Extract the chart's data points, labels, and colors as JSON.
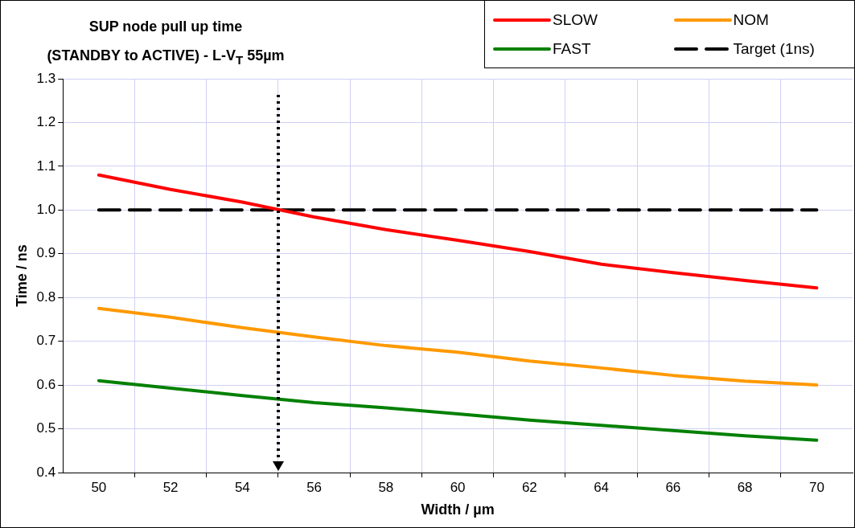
{
  "chart_data": {
    "type": "line",
    "title": "SUP node pull up time\n(STANDBY to ACTIVE) - L-V$_{T}$ 55µm",
    "xlabel": "Width / µm",
    "ylabel": "Time / ns",
    "x": [
      50,
      52,
      54,
      56,
      58,
      60,
      62,
      64,
      66,
      68,
      70
    ],
    "series": [
      {
        "name": "SLOW",
        "color": "#ff0000",
        "values": [
          1.08,
          1.047,
          1.018,
          0.984,
          0.955,
          0.931,
          0.905,
          0.876,
          0.857,
          0.839,
          0.822
        ]
      },
      {
        "name": "NOM",
        "color": "#ff9900",
        "values": [
          0.775,
          0.755,
          0.731,
          0.71,
          0.69,
          0.675,
          0.655,
          0.639,
          0.622,
          0.609,
          0.6
        ]
      },
      {
        "name": "FAST",
        "color": "#008000",
        "values": [
          0.61,
          0.593,
          0.576,
          0.56,
          0.548,
          0.534,
          0.52,
          0.508,
          0.496,
          0.484,
          0.474
        ]
      },
      {
        "name": "Target (1ns)",
        "color": "#000000",
        "x": [
          50,
          70
        ],
        "values": [
          1,
          1
        ],
        "line_style": "dashed"
      }
    ],
    "xlim": [
      49,
      71
    ],
    "xticks": [
      50,
      {
        "value": 51,
        "label": null
      },
      52,
      {
        "value": 53,
        "label": null
      },
      54,
      {
        "value": 55,
        "label": null
      },
      56,
      {
        "value": 57,
        "label": null
      },
      58,
      {
        "value": 59,
        "label": null
      },
      60,
      {
        "value": 61,
        "label": null
      },
      62,
      {
        "value": 63,
        "label": null
      },
      64,
      {
        "value": 65,
        "label": null
      },
      66,
      {
        "value": 67,
        "label": null
      },
      68,
      {
        "value": 69,
        "label": null
      },
      70
    ],
    "ylim": [
      0.4,
      1.3
    ],
    "yticks": [
      0.4,
      0.5,
      0.6,
      0.7,
      0.8,
      0.9,
      {
        "value": 1,
        "label": "1.0"
      },
      1.1,
      1.2,
      1.3
    ],
    "ref_lines": [
      {
        "axis": "x",
        "value": 55,
        "color": "#000000",
        "line_style": "dotted"
      }
    ],
    "grid": true,
    "legend": "top right",
    "marker": "none",
    "line_style": "solid"
  }
}
